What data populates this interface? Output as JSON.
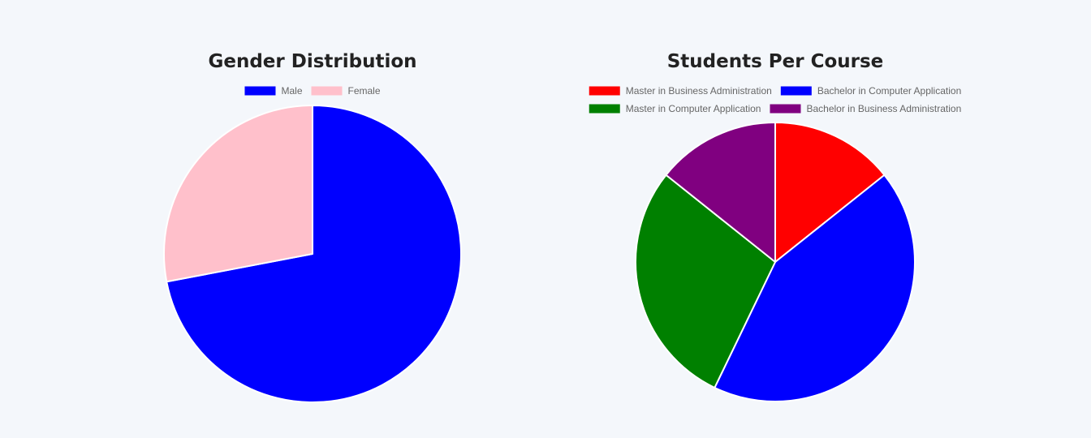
{
  "chart_data": [
    {
      "type": "pie",
      "title": "Gender Distribution",
      "categories": [
        "Male",
        "Female"
      ],
      "values": [
        72,
        28
      ],
      "colors": [
        "#0000ff",
        "#ffc0cb"
      ],
      "legend_position": "top",
      "slice_border_color": "#ffffff"
    },
    {
      "type": "pie",
      "title": "Students Per Course",
      "categories": [
        "Master in Business Administration",
        "Bachelor in Computer Application",
        "Master in Computer Application",
        "Bachelor in Business Administration"
      ],
      "values": [
        1,
        3,
        2,
        1
      ],
      "colors": [
        "#ff0000",
        "#0000ff",
        "#008000",
        "#800080"
      ],
      "legend_position": "top",
      "slice_border_color": "#ffffff"
    }
  ],
  "background_color": "#f4f7fb"
}
